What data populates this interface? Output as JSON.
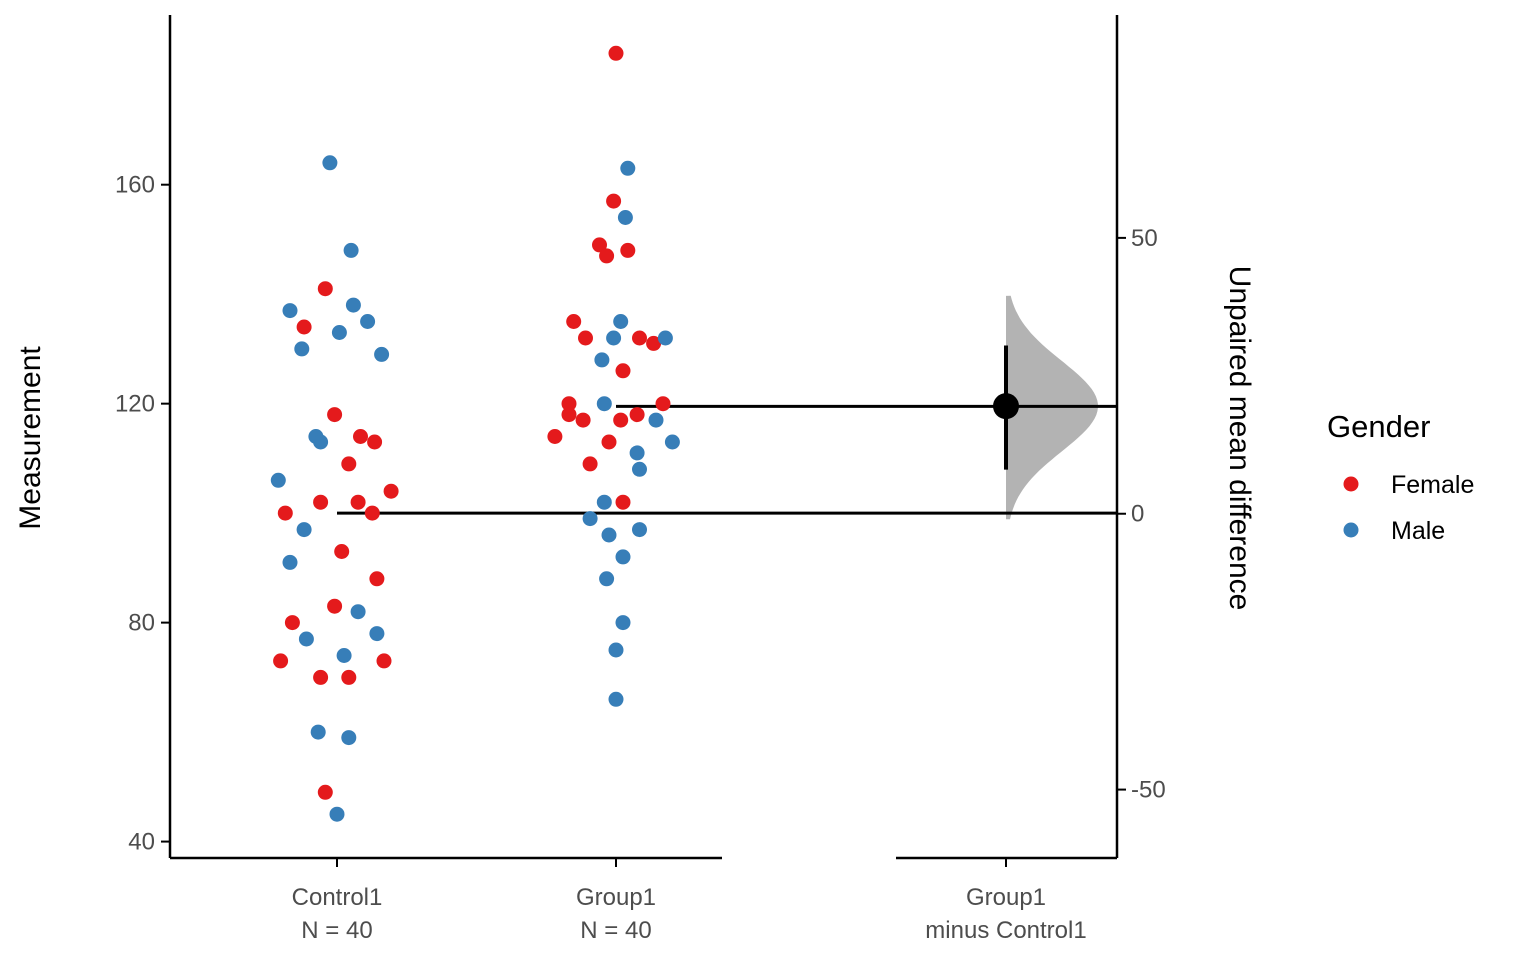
{
  "chart_data": {
    "type": "scatter",
    "subtype": "estimation-plot",
    "left_axis": {
      "label": "Measurement",
      "ticks": [
        40,
        80,
        120,
        160
      ],
      "ylim": [
        37,
        191
      ]
    },
    "right_axis": {
      "label": "Unpaired mean difference",
      "ticks": [
        -50,
        0,
        50
      ],
      "ylim": [
        -62.4,
        90.4
      ]
    },
    "categories": [
      {
        "name": "Control1",
        "sub": "N = 40"
      },
      {
        "name": "Group1",
        "sub": "N = 40"
      },
      {
        "name": "Group1",
        "sub": "minus Control1"
      }
    ],
    "legend": {
      "title": "Gender",
      "placement": "right",
      "items": [
        {
          "label": "Female",
          "color": "#e41a1c"
        },
        {
          "label": "Male",
          "color": "#377eb8"
        }
      ]
    },
    "group_means": {
      "Control1": 100,
      "Group1": 119.5
    },
    "effect_size": {
      "mean_diff": 19.5,
      "ci": [
        8,
        30.5
      ],
      "distribution_range": [
        -1,
        39.5
      ]
    },
    "grid": false,
    "series": [
      {
        "group": "Control1",
        "female": [
          [
            -0.24,
            73
          ],
          [
            -0.22,
            100
          ],
          [
            -0.19,
            80
          ],
          [
            -0.14,
            134
          ],
          [
            -0.07,
            70
          ],
          [
            -0.07,
            102
          ],
          [
            -0.05,
            141
          ],
          [
            -0.05,
            49
          ],
          [
            -0.01,
            83
          ],
          [
            -0.01,
            118
          ],
          [
            0.02,
            93
          ],
          [
            0.05,
            109
          ],
          [
            0.05,
            70
          ],
          [
            0.09,
            102
          ],
          [
            0.1,
            114
          ],
          [
            0.15,
            100
          ],
          [
            0.16,
            113
          ],
          [
            0.17,
            88
          ],
          [
            0.2,
            73
          ],
          [
            0.23,
            104
          ]
        ],
        "male": [
          [
            -0.25,
            106
          ],
          [
            -0.2,
            91
          ],
          [
            -0.2,
            137
          ],
          [
            -0.15,
            130
          ],
          [
            -0.14,
            97
          ],
          [
            -0.13,
            77
          ],
          [
            -0.09,
            114
          ],
          [
            -0.08,
            60
          ],
          [
            -0.07,
            113
          ],
          [
            -0.03,
            164
          ],
          [
            0.0,
            45
          ],
          [
            0.01,
            133
          ],
          [
            0.03,
            74
          ],
          [
            0.05,
            59
          ],
          [
            0.06,
            148
          ],
          [
            0.07,
            138
          ],
          [
            0.09,
            82
          ],
          [
            0.13,
            135
          ],
          [
            0.17,
            78
          ],
          [
            0.19,
            129
          ]
        ]
      },
      {
        "group": "Group1",
        "female": [
          [
            -0.26,
            114
          ],
          [
            -0.2,
            118
          ],
          [
            -0.2,
            120
          ],
          [
            -0.18,
            135
          ],
          [
            -0.14,
            117
          ],
          [
            -0.13,
            132
          ],
          [
            -0.11,
            109
          ],
          [
            -0.07,
            149
          ],
          [
            -0.04,
            147
          ],
          [
            -0.03,
            113
          ],
          [
            -0.01,
            157
          ],
          [
            0.0,
            184
          ],
          [
            0.02,
            117
          ],
          [
            0.03,
            102
          ],
          [
            0.03,
            126
          ],
          [
            0.05,
            148
          ],
          [
            0.09,
            118
          ],
          [
            0.1,
            132
          ],
          [
            0.16,
            131
          ],
          [
            0.2,
            120
          ]
        ],
        "male": [
          [
            -0.11,
            99
          ],
          [
            -0.06,
            128
          ],
          [
            -0.05,
            120
          ],
          [
            -0.05,
            102
          ],
          [
            -0.04,
            88
          ],
          [
            -0.03,
            96
          ],
          [
            -0.01,
            132
          ],
          [
            0.0,
            75
          ],
          [
            0.0,
            66
          ],
          [
            0.02,
            135
          ],
          [
            0.03,
            92
          ],
          [
            0.03,
            80
          ],
          [
            0.04,
            154
          ],
          [
            0.05,
            163
          ],
          [
            0.09,
            111
          ],
          [
            0.1,
            108
          ],
          [
            0.1,
            97
          ],
          [
            0.17,
            117
          ],
          [
            0.21,
            132
          ],
          [
            0.24,
            113
          ]
        ]
      }
    ]
  }
}
